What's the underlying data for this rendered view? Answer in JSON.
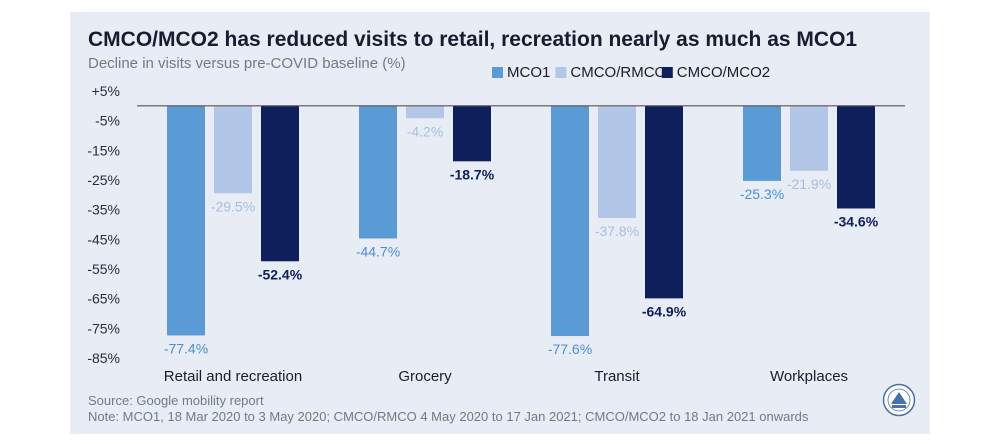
{
  "title": "CMCO/MCO2 has reduced visits to retail, recreation nearly as much as MCO1",
  "subtitle": "Decline in visits versus pre-COVID baseline (%)",
  "source": "Source: Google mobility report",
  "note": "Note: MCO1, 18 Mar 2020 to 3 May 2020; CMCO/RMCO 4 May 2020 to 17 Jan 2021; CMCO/MCO2 to 18 Jan 2021 onwards",
  "colors": {
    "MCO1": "#5b9bd5",
    "CMCO/RMCO": "#b4c6e7",
    "CMCO/MCO2": "#0f1f5c"
  },
  "chart_data": {
    "type": "bar",
    "categories": [
      "Retail and recreation",
      "Grocery",
      "Transit",
      "Workplaces"
    ],
    "series": [
      {
        "name": "MCO1",
        "values": [
          -77.4,
          -44.7,
          -77.6,
          -25.3
        ],
        "labels": [
          "-77.4%",
          "-44.7%",
          "-77.6%",
          "-25.3%"
        ]
      },
      {
        "name": "CMCO/RMCO",
        "values": [
          -29.5,
          -4.2,
          -37.8,
          -21.9
        ],
        "labels": [
          "-29.5%",
          "-4.2%",
          "-37.8%",
          "-21.9%"
        ]
      },
      {
        "name": "CMCO/MCO2",
        "values": [
          -52.4,
          -18.7,
          -64.9,
          -34.6
        ],
        "labels": [
          "-52.4%",
          "-18.7%",
          "-64.9%",
          "-34.6%"
        ]
      }
    ],
    "yticks": [
      5,
      -5,
      -15,
      -25,
      -35,
      -45,
      -55,
      -65,
      -75,
      -85
    ],
    "ytick_labels": [
      "+5%",
      "-5%",
      "-15%",
      "-25%",
      "-35%",
      "-45%",
      "-55%",
      "-65%",
      "-75%",
      "-85%"
    ],
    "ylim": [
      -85,
      5
    ],
    "legend": "top-right",
    "grid": false
  }
}
